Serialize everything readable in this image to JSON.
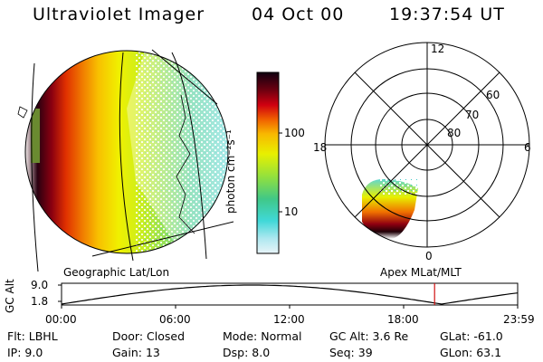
{
  "header": {
    "instrument": "Ultraviolet Imager",
    "date": "04 Oct 00",
    "time": "19:37:54 UT"
  },
  "colorbar": {
    "unit_label": "photon cm⁻²s⁻¹",
    "ticks": [
      "100",
      "10"
    ]
  },
  "polar_plot": {
    "mlt_labels": {
      "top": "12",
      "left": "18",
      "right": "6",
      "bottom": "0"
    },
    "lat_labels": [
      "60",
      "70",
      "80"
    ]
  },
  "panel_labels": {
    "geographic": "Geographic Lat/Lon",
    "apex": "Apex MLat/MLT"
  },
  "altitude_plot": {
    "axis_label": "GC Alt",
    "y_ticks": [
      "9.0",
      "1.8"
    ],
    "x_ticks": [
      "00:00",
      "06:00",
      "12:00",
      "18:00",
      "23:59"
    ],
    "current_marker_hours": 19.63
  },
  "footer": {
    "row1": [
      {
        "label": "Flt:",
        "value": "LBHL"
      },
      {
        "label": "Door:",
        "value": "Closed"
      },
      {
        "label": "Mode:",
        "value": "Normal"
      },
      {
        "label": "GC Alt:",
        "value": "3.6 Re"
      },
      {
        "label": "GLat:",
        "value": "-61.0"
      }
    ],
    "row2": [
      {
        "label": "IP:",
        "value": "9.0"
      },
      {
        "label": "Gain:",
        "value": "13"
      },
      {
        "label": "Dsp:",
        "value": "8.0"
      },
      {
        "label": "Seq:",
        "value": "39"
      },
      {
        "label": "GLon:",
        "value": "63.1"
      }
    ]
  }
}
